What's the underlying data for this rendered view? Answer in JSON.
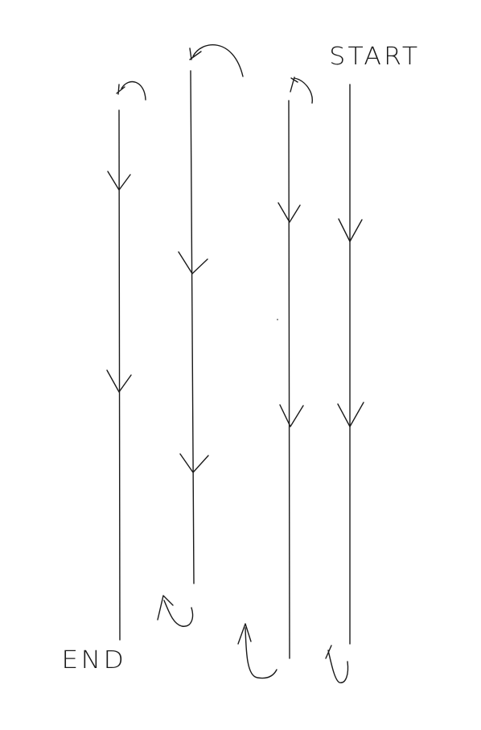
{
  "labels": {
    "start": "START",
    "end": "END"
  },
  "stroke_color": "#1a1a1a"
}
